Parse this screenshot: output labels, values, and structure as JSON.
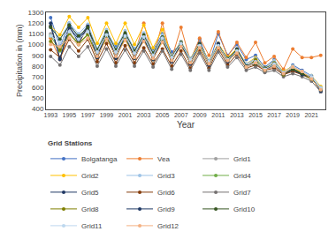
{
  "chart_data": {
    "type": "line",
    "xlabel": "Year",
    "ylabel": "Precipitation in (mm)",
    "legend_title": "Grid Stations",
    "x": [
      1993,
      1994,
      1995,
      1996,
      1997,
      1998,
      1999,
      2000,
      2001,
      2002,
      2003,
      2004,
      2005,
      2006,
      2007,
      2008,
      2009,
      2010,
      2011,
      2012,
      2013,
      2014,
      2015,
      2016,
      2017,
      2018,
      2019,
      2020,
      2021,
      2022
    ],
    "series": [
      {
        "name": "Bolgatanga",
        "color": "#4472c4",
        "values": [
          1250,
          980,
          1200,
          1060,
          1180,
          900,
          1100,
          980,
          1100,
          960,
          1050,
          950,
          1100,
          930,
          1000,
          850,
          1050,
          820,
          1100,
          900,
          1000,
          860,
          900,
          790,
          860,
          730,
          810,
          760,
          710,
          560
        ]
      },
      {
        "name": "Vea",
        "color": "#ed7d31",
        "values": [
          1060,
          860,
          1100,
          1000,
          1180,
          870,
          1080,
          880,
          1080,
          900,
          1200,
          880,
          1200,
          870,
          1160,
          850,
          1060,
          900,
          1120,
          890,
          1020,
          880,
          1020,
          830,
          890,
          770,
          960,
          880,
          880,
          900
        ]
      },
      {
        "name": "Grid1",
        "color": "#a0a0a0",
        "values": [
          1100,
          960,
          1150,
          1040,
          1140,
          920,
          1110,
          920,
          1090,
          900,
          1080,
          890,
          1060,
          860,
          1000,
          840,
          990,
          820,
          1010,
          860,
          950,
          810,
          870,
          760,
          840,
          720,
          780,
          730,
          690,
          590
        ]
      },
      {
        "name": "Grid2",
        "color": "#ffc000",
        "values": [
          1170,
          1090,
          1260,
          1160,
          1250,
          1010,
          1200,
          1010,
          1200,
          1000,
          1180,
          970,
          1140,
          890,
          1030,
          870,
          1010,
          850,
          1010,
          880,
          960,
          820,
          880,
          780,
          850,
          750,
          800,
          730,
          710,
          610
        ]
      },
      {
        "name": "Grid3",
        "color": "#9dc3e6",
        "values": [
          1160,
          1050,
          1200,
          1100,
          1190,
          960,
          1140,
          960,
          1130,
          950,
          1110,
          930,
          1090,
          890,
          1030,
          870,
          1000,
          850,
          1000,
          870,
          950,
          820,
          870,
          780,
          850,
          740,
          800,
          750,
          710,
          600
        ]
      },
      {
        "name": "Grid4",
        "color": "#70ad47",
        "values": [
          1080,
          940,
          1100,
          1000,
          1090,
          880,
          1070,
          880,
          1060,
          870,
          1050,
          860,
          1050,
          840,
          990,
          820,
          970,
          810,
          980,
          840,
          930,
          790,
          850,
          750,
          820,
          720,
          770,
          720,
          680,
          580
        ]
      },
      {
        "name": "Grid5",
        "color": "#203864",
        "values": [
          1200,
          860,
          1180,
          1010,
          1170,
          880,
          1110,
          870,
          1090,
          870,
          1060,
          860,
          1060,
          840,
          1010,
          820,
          1000,
          810,
          1000,
          840,
          950,
          800,
          820,
          760,
          800,
          720,
          760,
          720,
          700,
          560
        ]
      },
      {
        "name": "Grid6",
        "color": "#843c0c",
        "values": [
          950,
          880,
          1050,
          940,
          1050,
          840,
          1010,
          830,
          990,
          830,
          970,
          820,
          960,
          800,
          940,
          780,
          950,
          780,
          960,
          810,
          910,
          780,
          810,
          760,
          780,
          720,
          750,
          720,
          680,
          580
        ]
      },
      {
        "name": "Grid7",
        "color": "#757171",
        "values": [
          890,
          810,
          980,
          890,
          980,
          800,
          960,
          800,
          950,
          800,
          940,
          790,
          940,
          770,
          910,
          760,
          920,
          760,
          930,
          790,
          880,
          760,
          790,
          740,
          760,
          700,
          730,
          700,
          660,
          560
        ]
      },
      {
        "name": "Grid8",
        "color": "#7f7f00",
        "values": [
          1030,
          950,
          1110,
          1010,
          1100,
          880,
          1070,
          880,
          1060,
          880,
          1040,
          870,
          1030,
          850,
          990,
          830,
          980,
          820,
          980,
          850,
          930,
          790,
          860,
          760,
          830,
          720,
          780,
          730,
          680,
          580
        ]
      },
      {
        "name": "Grid9",
        "color": "#1f3864",
        "values": [
          1170,
          870,
          1160,
          1050,
          1160,
          880,
          1110,
          880,
          1090,
          880,
          1060,
          870,
          1060,
          840,
          1010,
          820,
          1010,
          810,
          1010,
          840,
          960,
          800,
          840,
          760,
          820,
          730,
          770,
          720,
          700,
          570
        ]
      },
      {
        "name": "Grid10",
        "color": "#375623",
        "values": [
          1160,
          1050,
          1180,
          1080,
          1160,
          950,
          1120,
          950,
          1110,
          940,
          1090,
          920,
          1070,
          890,
          1020,
          860,
          1000,
          840,
          990,
          870,
          950,
          800,
          820,
          780,
          820,
          740,
          770,
          730,
          690,
          580
        ]
      },
      {
        "name": "Grid11",
        "color": "#bdd7ee",
        "values": [
          1080,
          1020,
          1120,
          1050,
          1120,
          930,
          1090,
          930,
          1080,
          920,
          1070,
          900,
          1060,
          880,
          1010,
          860,
          990,
          840,
          990,
          860,
          940,
          790,
          840,
          770,
          820,
          740,
          790,
          750,
          700,
          590
        ]
      },
      {
        "name": "Grid12",
        "color": "#f4b183",
        "values": [
          1000,
          980,
          1060,
          1000,
          1060,
          890,
          1050,
          890,
          1040,
          880,
          1030,
          870,
          1020,
          850,
          980,
          830,
          970,
          820,
          970,
          850,
          920,
          790,
          830,
          760,
          800,
          730,
          790,
          750,
          680,
          580
        ]
      }
    ],
    "xlim": [
      1992.5,
      2022.5
    ],
    "xticks": [
      1993,
      1995,
      1997,
      1999,
      2001,
      2003,
      2005,
      2007,
      2009,
      2011,
      2013,
      2015,
      2017,
      2019,
      2021
    ],
    "ylim": [
      400,
      1300
    ],
    "yticks": [
      400,
      500,
      600,
      700,
      800,
      900,
      1000,
      1100,
      1200,
      1300
    ],
    "grid": false,
    "legend": "bottom",
    "marker": "circle",
    "line_style": "solid"
  }
}
